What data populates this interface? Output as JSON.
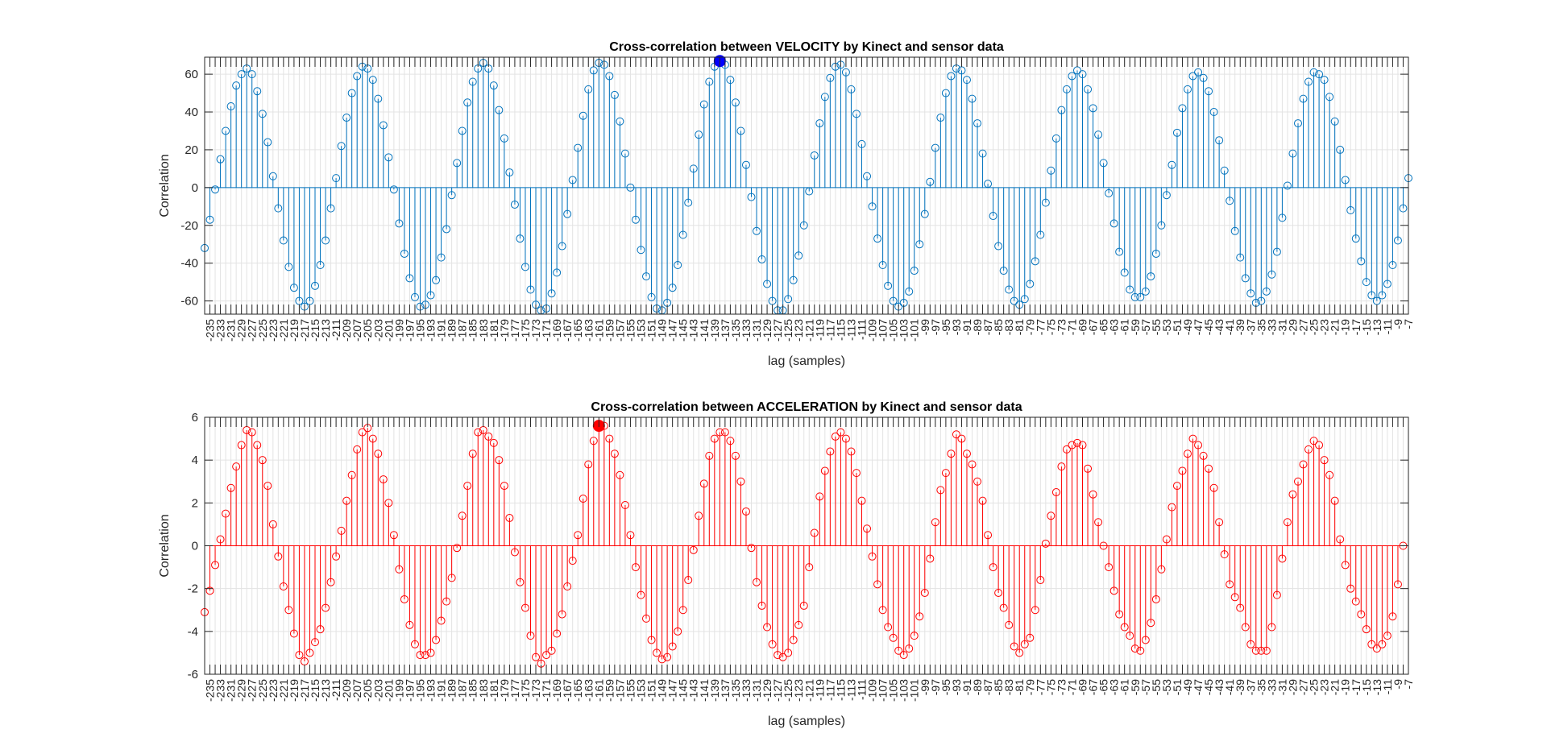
{
  "figure": {
    "background": "#ffffff",
    "axes_color": "#262626",
    "grid_color": "#e3e3e3"
  },
  "chart_data": [
    {
      "type": "stem",
      "title": "Cross-correlation between VELOCITY by Kinect and sensor data",
      "xlabel": "lag (samples)",
      "ylabel": "Correlation",
      "color": "#0072BD",
      "highlight_color": "#0000FF",
      "grid": true,
      "xlim": [
        -236,
        -7
      ],
      "ylim": [
        -67,
        69
      ],
      "ytick_labels": [
        "-60",
        "-40",
        "-20",
        "0",
        "20",
        "40",
        "60"
      ],
      "xtick_labels": [
        "-235",
        "-233",
        "-231",
        "-229",
        "-227",
        "-225",
        "-223",
        "-221",
        "-219",
        "-217",
        "-215",
        "-213",
        "-211",
        "-209",
        "-207",
        "-205",
        "-203",
        "-201",
        "-199",
        "-197",
        "-195",
        "-193",
        "-191",
        "-189",
        "-187",
        "-185",
        "-183",
        "-181",
        "-179",
        "-177",
        "-175",
        "-173",
        "-171",
        "-169",
        "-167",
        "-165",
        "-163",
        "-161",
        "-159",
        "-157",
        "-155",
        "-153",
        "-151",
        "-149",
        "-147",
        "-145",
        "-143",
        "-141",
        "-139",
        "-137",
        "-135",
        "-133",
        "-131",
        "-129",
        "-127",
        "-125",
        "-123",
        "-121",
        "-119",
        "-117",
        "-115",
        "-113",
        "-111",
        "-109",
        "-107",
        "-105",
        "-103",
        "-101",
        "-99",
        "-97",
        "-95",
        "-93",
        "-91",
        "-89",
        "-87",
        "-85",
        "-83",
        "-81",
        "-79",
        "-77",
        "-75",
        "-73",
        "-71",
        "-69",
        "-67",
        "-65",
        "-63",
        "-61",
        "-59",
        "-57",
        "-55",
        "-53",
        "-51",
        "-49",
        "-47",
        "-45",
        "-43",
        "-41",
        "-39",
        "-37",
        "-35",
        "-33",
        "-31",
        "-29",
        "-27",
        "-25",
        "-23",
        "-21",
        "-19",
        "-17",
        "-15",
        "-13",
        "-11",
        "-9",
        "-7"
      ],
      "x_start": -236,
      "x_step": 1,
      "values": [
        -32,
        -17,
        -1,
        15,
        30,
        43,
        54,
        60,
        63,
        60,
        51,
        39,
        24,
        6,
        -11,
        -28,
        -42,
        -53,
        -60,
        -63,
        -60,
        -52,
        -41,
        -28,
        -11,
        5,
        22,
        37,
        50,
        59,
        64,
        63,
        57,
        47,
        33,
        16,
        -1,
        -19,
        -35,
        -48,
        -58,
        -63,
        -62,
        -57,
        -49,
        -37,
        -22,
        -4,
        13,
        30,
        45,
        56,
        63,
        66,
        63,
        54,
        41,
        26,
        8,
        -9,
        -27,
        -42,
        -54,
        -62,
        -65,
        -64,
        -56,
        -45,
        -31,
        -14,
        4,
        21,
        38,
        52,
        62,
        66,
        65,
        59,
        49,
        35,
        18,
        0,
        -17,
        -33,
        -47,
        -58,
        -64,
        -65,
        -61,
        -53,
        -41,
        -25,
        -8,
        10,
        28,
        44,
        56,
        64,
        67,
        65,
        57,
        45,
        30,
        12,
        -5,
        -23,
        -38,
        -51,
        -60,
        -65,
        -65,
        -59,
        -49,
        -36,
        -20,
        -2,
        17,
        34,
        48,
        58,
        64,
        65,
        61,
        52,
        39,
        23,
        6,
        -10,
        -27,
        -41,
        -52,
        -60,
        -63,
        -61,
        -55,
        -44,
        -30,
        -14,
        3,
        21,
        37,
        50,
        59,
        63,
        62,
        57,
        47,
        34,
        18,
        2,
        -15,
        -31,
        -44,
        -54,
        -60,
        -62,
        -59,
        -51,
        -39,
        -25,
        -8,
        9,
        26,
        41,
        52,
        59,
        62,
        60,
        52,
        42,
        28,
        13,
        -3,
        -19,
        -34,
        -45,
        -54,
        -58,
        -58,
        -55,
        -47,
        -35,
        -20,
        -4,
        12,
        29,
        42,
        52,
        59,
        61,
        58,
        51,
        40,
        25,
        9,
        -7,
        -23,
        -37,
        -48,
        -56,
        -61,
        -60,
        -55,
        -46,
        -34,
        -16,
        1,
        18,
        34,
        47,
        56,
        61,
        60,
        57,
        48,
        35,
        20,
        4,
        -12,
        -27,
        -39,
        -50,
        -57,
        -60,
        -57,
        -51,
        -41,
        -28,
        -11,
        5
      ],
      "highlight_point": [
        -138,
        67
      ]
    },
    {
      "type": "stem",
      "title": "Cross-correlation between ACCELERATION by Kinect and sensor data",
      "xlabel": "lag (samples)",
      "ylabel": "Correlation",
      "color": "#FF0000",
      "highlight_color": "#FF0000",
      "grid": true,
      "xlim": [
        -236,
        -7
      ],
      "ylim": [
        -6,
        6
      ],
      "ytick_labels": [
        "-6",
        "-4",
        "-2",
        "0",
        "2",
        "4",
        "6"
      ],
      "xtick_labels": [
        "-235",
        "-233",
        "-231",
        "-229",
        "-227",
        "-225",
        "-223",
        "-221",
        "-219",
        "-217",
        "-215",
        "-213",
        "-211",
        "-209",
        "-207",
        "-205",
        "-203",
        "-201",
        "-199",
        "-197",
        "-195",
        "-193",
        "-191",
        "-189",
        "-187",
        "-185",
        "-183",
        "-181",
        "-179",
        "-177",
        "-175",
        "-173",
        "-171",
        "-169",
        "-167",
        "-165",
        "-163",
        "-161",
        "-159",
        "-157",
        "-155",
        "-153",
        "-151",
        "-149",
        "-147",
        "-145",
        "-143",
        "-141",
        "-139",
        "-137",
        "-135",
        "-133",
        "-131",
        "-129",
        "-127",
        "-125",
        "-123",
        "-121",
        "-119",
        "-117",
        "-115",
        "-113",
        "-111",
        "-109",
        "-107",
        "-105",
        "-103",
        "-101",
        "-99",
        "-97",
        "-95",
        "-93",
        "-91",
        "-89",
        "-87",
        "-85",
        "-83",
        "-81",
        "-79",
        "-77",
        "-75",
        "-73",
        "-71",
        "-69",
        "-67",
        "-65",
        "-63",
        "-61",
        "-59",
        "-57",
        "-55",
        "-53",
        "-51",
        "-49",
        "-47",
        "-45",
        "-43",
        "-41",
        "-39",
        "-37",
        "-35",
        "-33",
        "-31",
        "-29",
        "-27",
        "-25",
        "-23",
        "-21",
        "-19",
        "-17",
        "-15",
        "-13",
        "-11",
        "-9",
        "-7"
      ],
      "x_start": -236,
      "x_step": 1,
      "values": [
        -3.1,
        -2.1,
        -0.9,
        0.3,
        1.5,
        2.7,
        3.7,
        4.7,
        5.4,
        5.3,
        4.7,
        4.0,
        2.8,
        1.0,
        -0.5,
        -1.9,
        -3.0,
        -4.1,
        -5.1,
        -5.4,
        -5.0,
        -4.5,
        -3.9,
        -2.9,
        -1.7,
        -0.5,
        0.7,
        2.1,
        3.3,
        4.5,
        5.3,
        5.5,
        5.0,
        4.3,
        3.1,
        2.0,
        0.5,
        -1.1,
        -2.5,
        -3.7,
        -4.6,
        -5.1,
        -5.1,
        -5.0,
        -4.4,
        -3.5,
        -2.6,
        -1.5,
        -0.1,
        1.4,
        2.8,
        4.3,
        5.3,
        5.4,
        5.1,
        4.8,
        4.0,
        2.8,
        1.3,
        -0.3,
        -1.7,
        -2.9,
        -4.2,
        -5.2,
        -5.5,
        -5.1,
        -4.9,
        -4.1,
        -3.2,
        -1.9,
        -0.7,
        0.5,
        2.2,
        3.8,
        4.9,
        5.6,
        5.6,
        5.0,
        4.3,
        3.3,
        1.9,
        0.5,
        -1.0,
        -2.3,
        -3.4,
        -4.4,
        -5.0,
        -5.3,
        -5.2,
        -4.7,
        -4.0,
        -3.0,
        -1.6,
        -0.2,
        1.4,
        2.9,
        4.2,
        5.0,
        5.3,
        5.3,
        4.9,
        4.2,
        3.0,
        1.6,
        -0.1,
        -1.7,
        -2.8,
        -3.8,
        -4.6,
        -5.1,
        -5.2,
        -5.0,
        -4.4,
        -3.7,
        -2.8,
        -1.0,
        0.6,
        2.3,
        3.5,
        4.4,
        5.1,
        5.3,
        5.0,
        4.4,
        3.4,
        2.1,
        0.8,
        -0.5,
        -1.8,
        -3.0,
        -3.8,
        -4.3,
        -4.9,
        -5.1,
        -4.8,
        -4.2,
        -3.3,
        -2.2,
        -0.6,
        1.1,
        2.6,
        3.4,
        4.3,
        5.2,
        5.0,
        4.3,
        3.8,
        3.0,
        2.1,
        0.5,
        -1.0,
        -2.2,
        -2.9,
        -3.7,
        -4.7,
        -5.0,
        -4.6,
        -4.3,
        -3.0,
        -1.6,
        0.1,
        1.4,
        2.5,
        3.7,
        4.5,
        4.7,
        4.8,
        4.7,
        3.6,
        2.4,
        1.1,
        0.0,
        -1.0,
        -2.1,
        -3.2,
        -3.8,
        -4.2,
        -4.8,
        -4.9,
        -4.4,
        -3.6,
        -2.5,
        -1.1,
        0.3,
        1.8,
        2.8,
        3.5,
        4.3,
        5.0,
        4.7,
        4.2,
        3.6,
        2.7,
        1.1,
        -0.4,
        -1.8,
        -2.4,
        -2.9,
        -3.8,
        -4.6,
        -4.9,
        -4.9,
        -4.9,
        -3.8,
        -2.3,
        -0.6,
        1.1,
        2.4,
        3.0,
        3.8,
        4.5,
        4.9,
        4.7,
        4.0,
        3.3,
        2.1,
        0.3,
        -0.9,
        -2.0,
        -2.6,
        -3.2,
        -3.9,
        -4.6,
        -4.8,
        -4.6,
        -4.2,
        -3.3,
        -1.8,
        0.0
      ],
      "highlight_point": [
        -161,
        5.6
      ]
    }
  ]
}
